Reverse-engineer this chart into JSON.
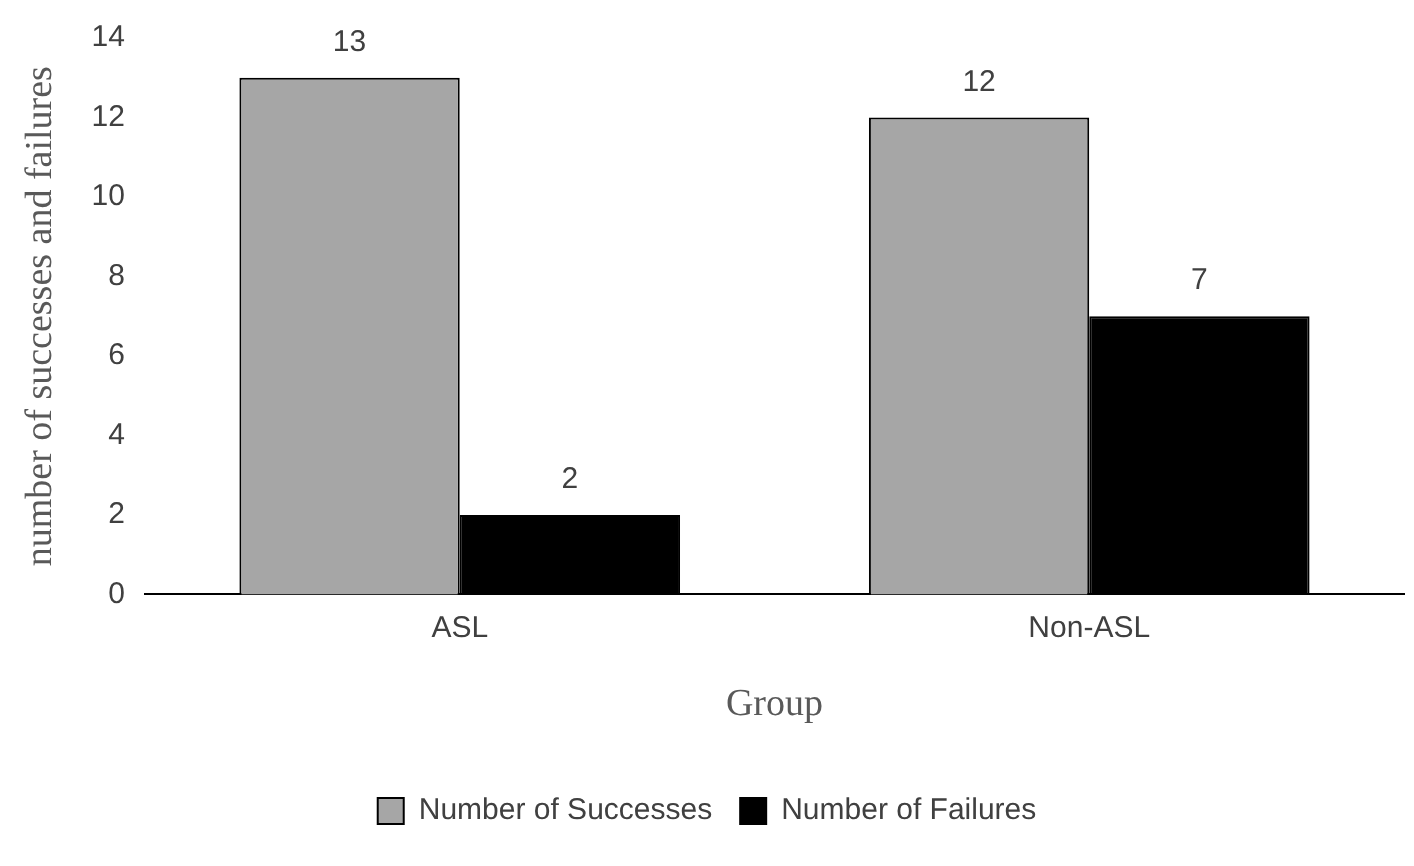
{
  "chart_data": {
    "type": "bar",
    "xlabel": "Group",
    "ylabel": "number of successes and failures",
    "categories": [
      "ASL",
      "Non-ASL"
    ],
    "series": [
      {
        "name": "Number of Successes",
        "color": "#a6a6a6",
        "values": [
          13,
          12
        ]
      },
      {
        "name": "Number of Failures",
        "color": "#000000",
        "values": [
          2,
          7
        ]
      }
    ],
    "ylim": [
      0,
      14
    ],
    "yticks": [
      0,
      2,
      4,
      6,
      8,
      10,
      12,
      14
    ],
    "grid": false,
    "legend": "bottom",
    "data_labels": true
  }
}
